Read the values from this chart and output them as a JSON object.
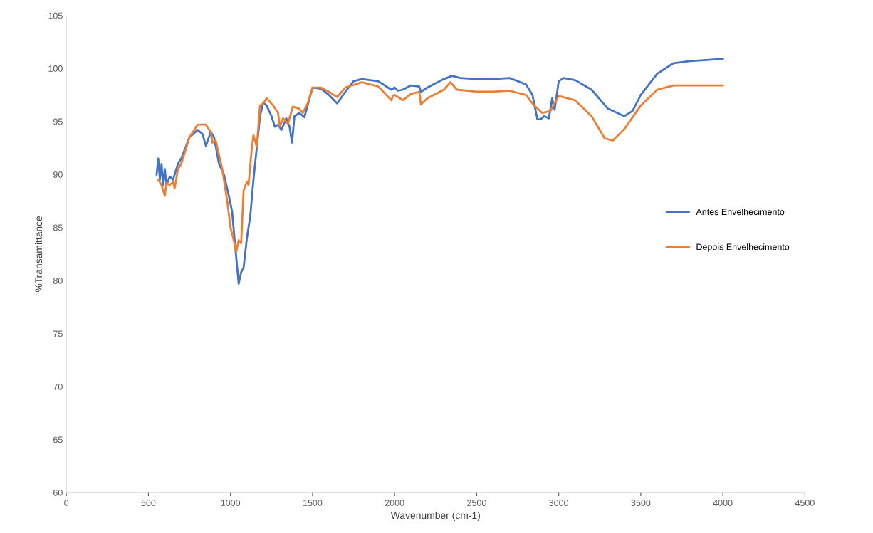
{
  "chart_data": {
    "type": "line",
    "xlabel": "Wavenumber (cm-1)",
    "ylabel": "%Transamittance",
    "xlim": [
      0,
      4500
    ],
    "xticks": [
      0,
      500,
      1000,
      1500,
      2000,
      2500,
      3000,
      3500,
      4000,
      4500
    ],
    "ylim": [
      60,
      105
    ],
    "yticks": [
      60,
      65,
      70,
      75,
      80,
      85,
      90,
      95,
      100,
      105
    ],
    "grid": false,
    "legend": "right",
    "marker": "none",
    "line_style": "solid",
    "series": [
      {
        "name": "Antes Envelhecimento",
        "color": "#4472c4",
        "x": [
          550,
          560,
          570,
          580,
          590,
          600,
          610,
          630,
          650,
          680,
          700,
          750,
          800,
          830,
          850,
          880,
          900,
          930,
          960,
          990,
          1010,
          1030,
          1050,
          1065,
          1080,
          1100,
          1120,
          1140,
          1160,
          1180,
          1200,
          1220,
          1250,
          1270,
          1290,
          1310,
          1340,
          1360,
          1375,
          1390,
          1420,
          1450,
          1470,
          1500,
          1550,
          1600,
          1650,
          1700,
          1750,
          1800,
          1900,
          1980,
          2000,
          2020,
          2050,
          2100,
          2150,
          2160,
          2200,
          2300,
          2350,
          2400,
          2500,
          2600,
          2700,
          2800,
          2840,
          2870,
          2890,
          2910,
          2940,
          2960,
          2975,
          3000,
          3030,
          3100,
          3200,
          3300,
          3400,
          3450,
          3500,
          3600,
          3700,
          3800,
          3900,
          4000
        ],
        "values": [
          90.0,
          91.5,
          89.5,
          91.0,
          89.0,
          90.5,
          89.0,
          89.8,
          89.5,
          91,
          91.5,
          93.5,
          94.2,
          93.8,
          92.7,
          94,
          93.5,
          91,
          90,
          88,
          86.5,
          83,
          79.7,
          80.8,
          81.2,
          84,
          86,
          89.5,
          92.5,
          95.5,
          96.8,
          96.5,
          95.5,
          94.5,
          94.7,
          94.2,
          95.3,
          94.5,
          93.0,
          95.5,
          95.8,
          95.4,
          96.5,
          98.2,
          98.1,
          97.5,
          96.7,
          97.8,
          98.8,
          99.0,
          98.8,
          98.0,
          98.2,
          97.9,
          98.0,
          98.4,
          98.3,
          97.8,
          98.2,
          99.0,
          99.3,
          99.1,
          99.0,
          99.0,
          99.1,
          98.5,
          97.5,
          95.2,
          95.2,
          95.5,
          95.3,
          97.2,
          96.1,
          98.8,
          99.1,
          98.9,
          98.0,
          96.2,
          95.5,
          96.0,
          97.5,
          99.5,
          100.5,
          100.7,
          100.8,
          100.9
        ]
      },
      {
        "name": "Depois Envelhecimento",
        "color": "#ed7d31",
        "x": [
          560,
          580,
          600,
          610,
          630,
          650,
          660,
          680,
          700,
          750,
          800,
          850,
          880,
          890,
          910,
          950,
          980,
          1000,
          1020,
          1035,
          1050,
          1065,
          1080,
          1100,
          1110,
          1130,
          1140,
          1160,
          1180,
          1200,
          1220,
          1260,
          1290,
          1300,
          1320,
          1350,
          1380,
          1420,
          1440,
          1470,
          1500,
          1550,
          1600,
          1650,
          1700,
          1800,
          1900,
          1980,
          1990,
          2000,
          2050,
          2100,
          2150,
          2160,
          2200,
          2300,
          2340,
          2380,
          2500,
          2600,
          2700,
          2800,
          2850,
          2900,
          2950,
          3000,
          3100,
          3200,
          3280,
          3330,
          3400,
          3500,
          3600,
          3700,
          3800,
          4000
        ],
        "values": [
          89.5,
          89.0,
          88.0,
          89.2,
          89.0,
          89.3,
          88.7,
          90.5,
          91,
          93.5,
          94.7,
          94.7,
          94.0,
          93.0,
          93.2,
          90.5,
          87.5,
          85,
          83.8,
          82.7,
          83.8,
          83.5,
          88.5,
          89.3,
          89.0,
          92.5,
          93.7,
          92.6,
          96.5,
          96.7,
          97.2,
          96.5,
          95.8,
          94.5,
          95.3,
          94.8,
          96.4,
          96.2,
          95.8,
          96.7,
          98.2,
          98.2,
          97.8,
          97.3,
          98.2,
          98.7,
          98.3,
          97.0,
          97.4,
          97.5,
          97.0,
          97.6,
          97.8,
          96.6,
          97.2,
          98.0,
          98.7,
          98.0,
          97.8,
          97.8,
          97.9,
          97.5,
          96.5,
          95.8,
          96.0,
          97.4,
          97.0,
          95.5,
          93.4,
          93.2,
          94.3,
          96.5,
          98.0,
          98.4,
          98.4,
          98.4
        ]
      }
    ]
  }
}
